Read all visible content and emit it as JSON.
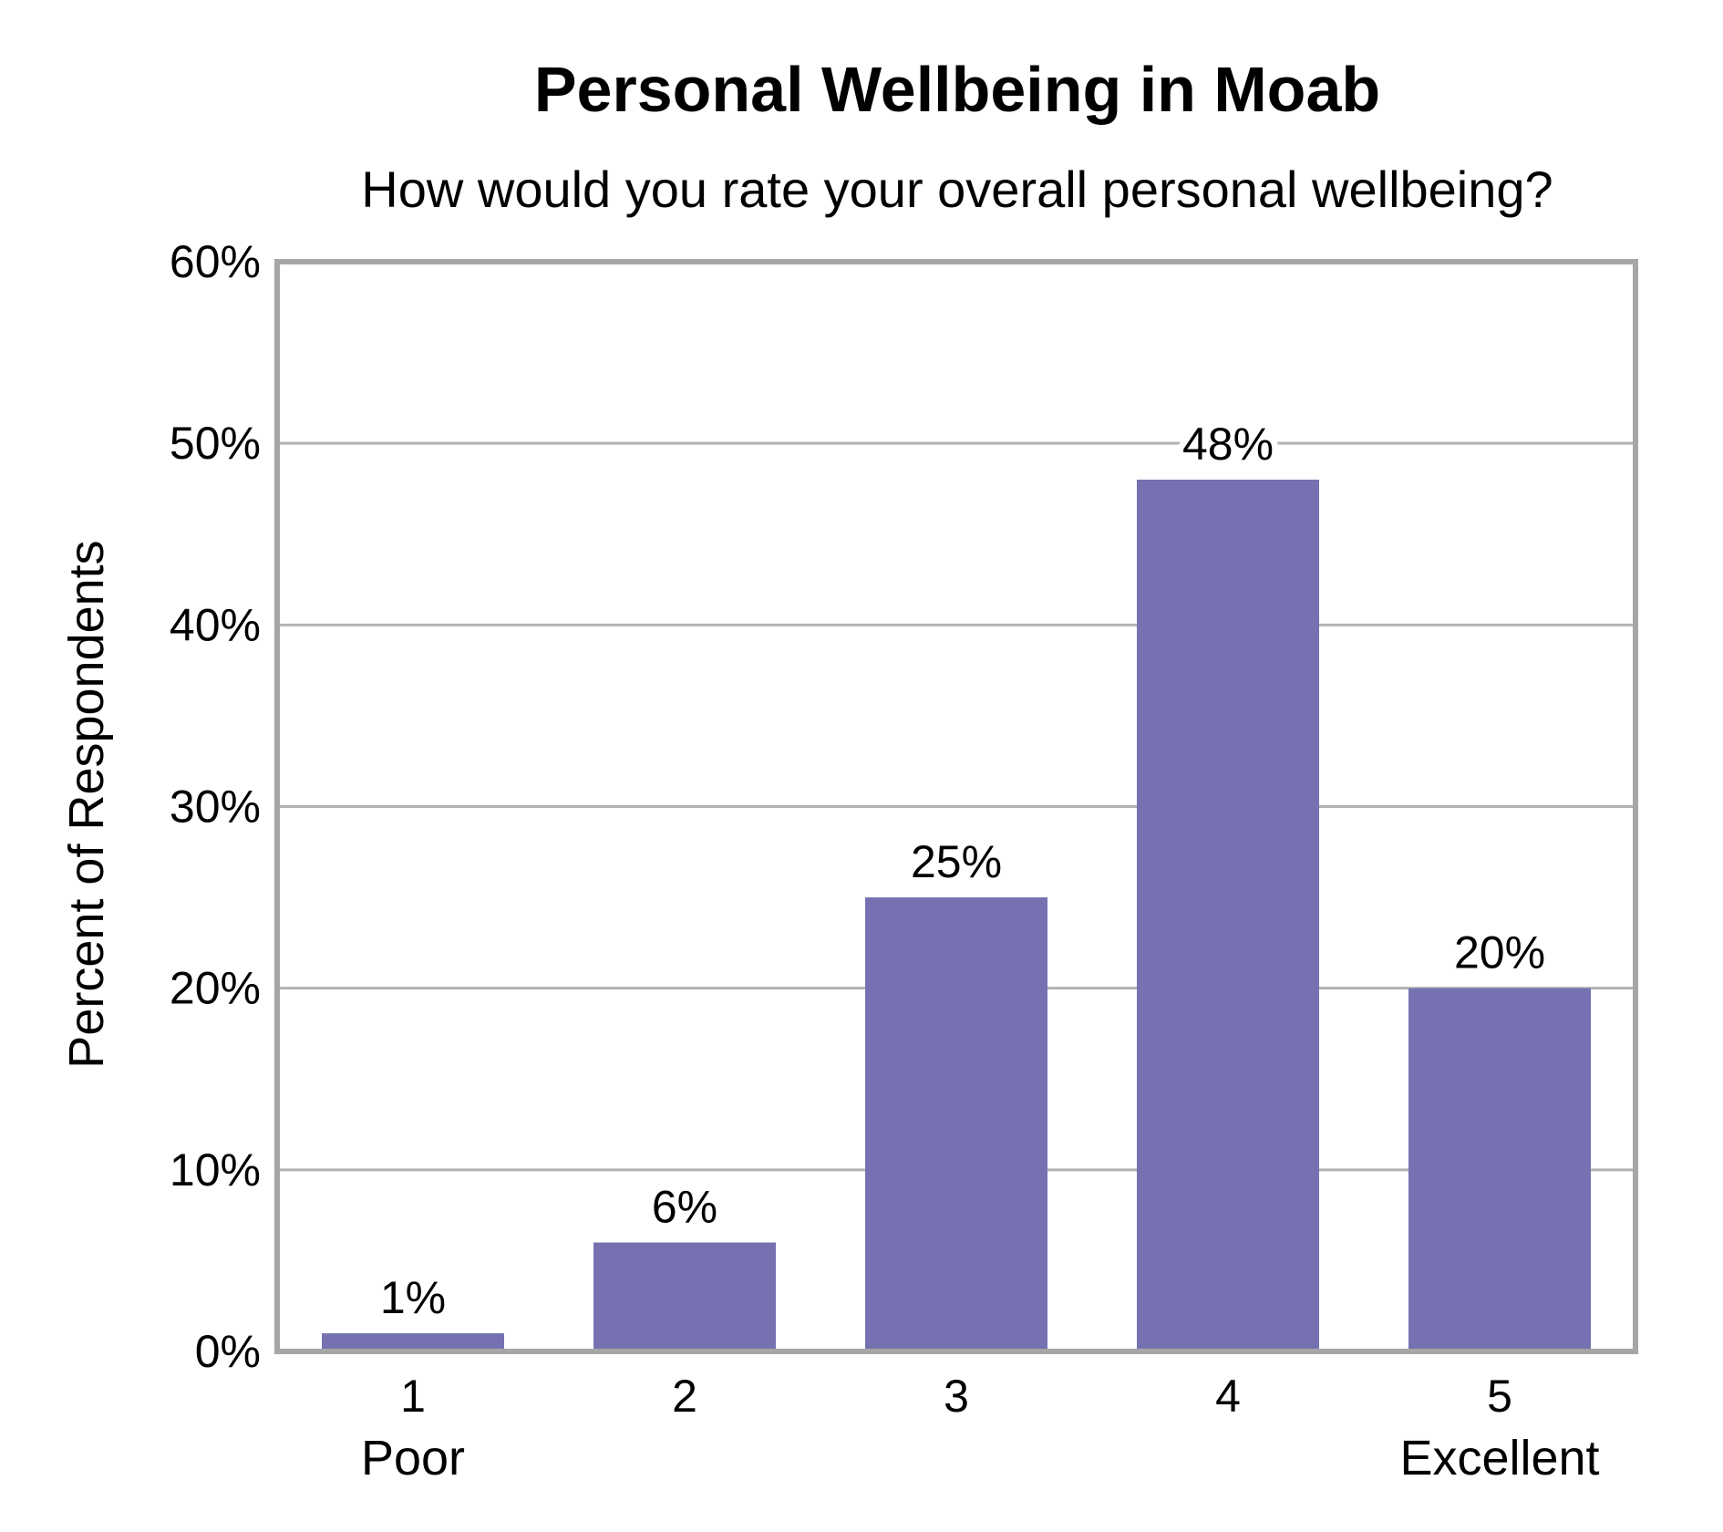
{
  "chart_data": {
    "type": "bar",
    "title": "Personal Wellbeing in Moab",
    "subtitle": "How would you rate your overall personal wellbeing?",
    "xlabel": "",
    "ylabel": "Percent of Respondents",
    "categories": [
      "1",
      "2",
      "3",
      "4",
      "5"
    ],
    "category_sublabels": [
      "Poor",
      "",
      "",
      "",
      "Excellent"
    ],
    "values": [
      1,
      6,
      25,
      48,
      20
    ],
    "data_labels": [
      "1%",
      "6%",
      "25%",
      "48%",
      "20%"
    ],
    "ylim": [
      0,
      60
    ],
    "yticks": [
      0,
      10,
      20,
      30,
      40,
      50,
      60
    ],
    "ytick_labels": [
      "0%",
      "10%",
      "20%",
      "30%",
      "40%",
      "50%",
      "60%"
    ],
    "grid": true,
    "legend": "none",
    "colors": {
      "bar": "#7672B1",
      "grid": "#B3B3B3",
      "frame": "#A6A6A6"
    }
  }
}
